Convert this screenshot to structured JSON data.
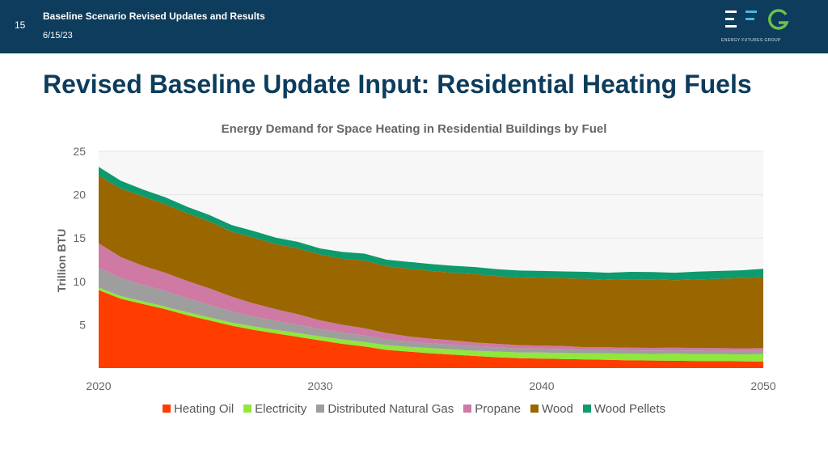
{
  "header": {
    "slide_number": "15",
    "title": "Baseline Scenario Revised Updates and Results",
    "date": "6/15/23",
    "logo_text": "ENERGY FUTURES GROUP"
  },
  "slide": {
    "title": "Revised Baseline Update Input: Residential Heating Fuels"
  },
  "colors": {
    "header_bg": "#0d3c5c",
    "logo_green": "#6cc04a",
    "logo_blue": "#48b6e6"
  },
  "chart_data": {
    "type": "area",
    "stacked": true,
    "title": "Energy Demand for Space Heating in Residential Buildings by Fuel",
    "xlabel": "",
    "ylabel": "Trillion BTU",
    "xlim": [
      2020,
      2050
    ],
    "ylim": [
      0,
      25
    ],
    "y_ticks": [
      "5",
      "10",
      "15",
      "20",
      "25"
    ],
    "y_tick_values": [
      5,
      10,
      15,
      20,
      25
    ],
    "x_ticks": [
      "2020",
      "2030",
      "2040",
      "2050"
    ],
    "x_tick_values": [
      2020,
      2030,
      2040,
      2050
    ],
    "grid": true,
    "legend": "bottom",
    "x": [
      2020,
      2021,
      2022,
      2023,
      2024,
      2025,
      2026,
      2027,
      2028,
      2029,
      2030,
      2031,
      2032,
      2033,
      2034,
      2035,
      2036,
      2037,
      2038,
      2039,
      2040,
      2041,
      2042,
      2043,
      2044,
      2045,
      2046,
      2047,
      2048,
      2049,
      2050
    ],
    "series": [
      {
        "name": "Heating Oil",
        "color": "#ff3d00",
        "values": [
          9.0,
          8.0,
          7.4,
          6.8,
          6.1,
          5.5,
          4.9,
          4.4,
          4.0,
          3.6,
          3.2,
          2.8,
          2.5,
          2.1,
          1.9,
          1.7,
          1.55,
          1.4,
          1.25,
          1.15,
          1.1,
          1.05,
          1.0,
          0.95,
          0.9,
          0.88,
          0.85,
          0.82,
          0.8,
          0.78,
          0.75
        ]
      },
      {
        "name": "Electricity",
        "color": "#8fe83a",
        "values": [
          0.3,
          0.3,
          0.3,
          0.3,
          0.35,
          0.35,
          0.35,
          0.4,
          0.4,
          0.45,
          0.45,
          0.5,
          0.5,
          0.55,
          0.55,
          0.6,
          0.6,
          0.6,
          0.65,
          0.65,
          0.7,
          0.7,
          0.7,
          0.75,
          0.75,
          0.75,
          0.8,
          0.8,
          0.8,
          0.8,
          0.85
        ]
      },
      {
        "name": "Distributed Natural Gas",
        "color": "#9e9e9e",
        "values": [
          2.3,
          2.1,
          1.9,
          1.8,
          1.6,
          1.45,
          1.3,
          1.15,
          1.05,
          0.95,
          0.85,
          0.8,
          0.75,
          0.65,
          0.6,
          0.55,
          0.55,
          0.5,
          0.5,
          0.45,
          0.45,
          0.45,
          0.4,
          0.4,
          0.4,
          0.4,
          0.4,
          0.4,
          0.4,
          0.4,
          0.4
        ]
      },
      {
        "name": "Propane",
        "color": "#cf79a5",
        "values": [
          2.8,
          2.4,
          2.2,
          2.1,
          2.0,
          1.9,
          1.7,
          1.5,
          1.35,
          1.2,
          1.0,
          0.9,
          0.85,
          0.75,
          0.6,
          0.55,
          0.5,
          0.45,
          0.4,
          0.4,
          0.35,
          0.35,
          0.3,
          0.3,
          0.3,
          0.3,
          0.3,
          0.3,
          0.3,
          0.3,
          0.3
        ]
      },
      {
        "name": "Wood",
        "color": "#996600",
        "values": [
          7.8,
          7.9,
          8.0,
          7.9,
          7.8,
          7.7,
          7.5,
          7.6,
          7.5,
          7.6,
          7.6,
          7.6,
          7.8,
          7.7,
          7.8,
          7.8,
          7.8,
          7.9,
          7.8,
          7.8,
          7.8,
          7.8,
          7.9,
          7.8,
          7.9,
          7.9,
          7.8,
          7.9,
          8.0,
          8.1,
          8.2
        ]
      },
      {
        "name": "Wood Pellets",
        "color": "#0e9a6c",
        "values": [
          1.0,
          0.9,
          0.8,
          0.8,
          0.75,
          0.75,
          0.75,
          0.75,
          0.75,
          0.75,
          0.7,
          0.8,
          0.8,
          0.75,
          0.8,
          0.8,
          0.8,
          0.8,
          0.8,
          0.8,
          0.8,
          0.8,
          0.8,
          0.8,
          0.85,
          0.85,
          0.85,
          0.9,
          0.9,
          0.9,
          0.95
        ]
      }
    ]
  }
}
